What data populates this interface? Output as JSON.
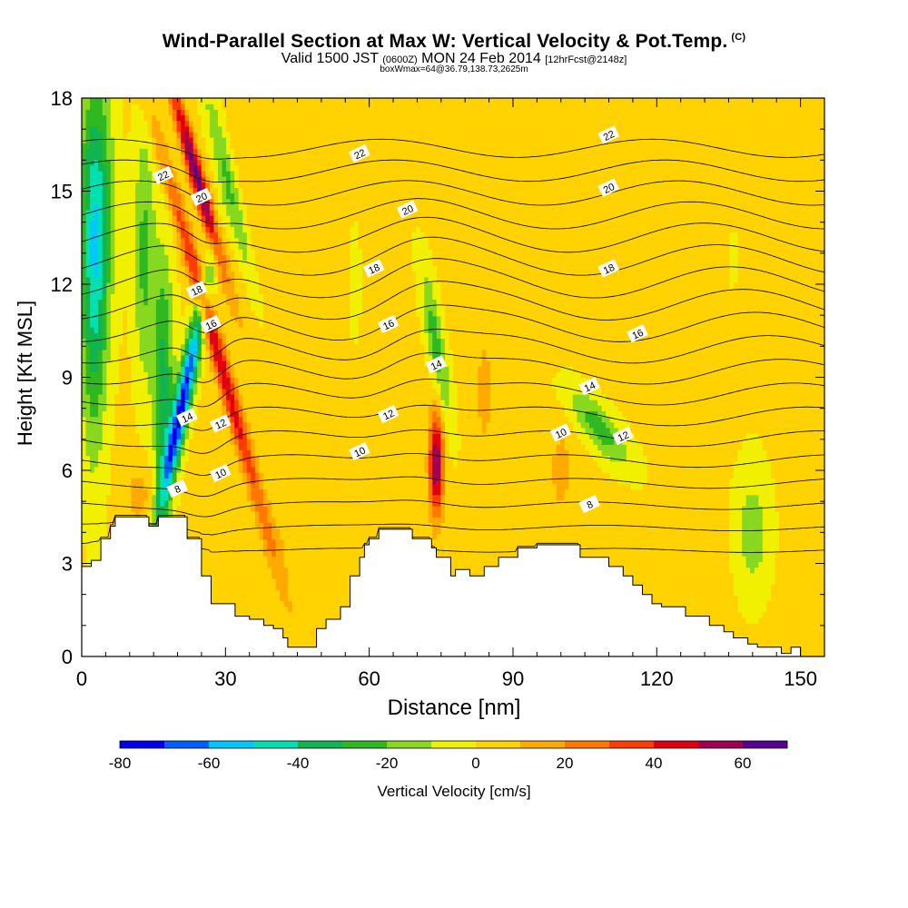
{
  "header": {
    "title": "Wind-Parallel Section at Max W: Vertical Velocity & Pot.Temp.",
    "copyright": "(C)",
    "valid_prefix": "Valid 1500 JST",
    "valid_utc": "(0600Z)",
    "valid_date": "MON 24 Feb 2014",
    "forecast": "[12hrFcst@2148z]",
    "box_info": "boxWmax=64@36.79,138.73,2625m"
  },
  "chart_data": {
    "type": "heatmap",
    "title": "Wind-Parallel Section at Max W: Vertical Velocity & Pot.Temp.",
    "xlabel": "Distance [nm]",
    "ylabel": "Height [Kft MSL]",
    "xlim": [
      0,
      155
    ],
    "ylim": [
      0,
      18
    ],
    "xticks": [
      0,
      30,
      60,
      90,
      120,
      150
    ],
    "yticks": [
      0,
      3,
      6,
      9,
      12,
      15,
      18
    ],
    "colorbar": {
      "label": "Vertical Velocity [cm/s]",
      "min": -80,
      "max": 70,
      "step": 10,
      "tick_values": [
        -80,
        -60,
        -40,
        -20,
        0,
        20,
        40,
        60
      ],
      "colors": [
        "#0000ee",
        "#0060ff",
        "#00c8ff",
        "#00e0b0",
        "#10b450",
        "#30b820",
        "#88d820",
        "#f0f000",
        "#ffd200",
        "#ffaa00",
        "#ff7800",
        "#ff3c00",
        "#e00010",
        "#a00050",
        "#5a0090"
      ]
    },
    "terrain_profile": [
      [
        0,
        2.9
      ],
      [
        2,
        2.9
      ],
      [
        2,
        3.1
      ],
      [
        4,
        3.1
      ],
      [
        4,
        3.8
      ],
      [
        6,
        3.8
      ],
      [
        6,
        4.2
      ],
      [
        7,
        4.2
      ],
      [
        7,
        4.5
      ],
      [
        14,
        4.5
      ],
      [
        14,
        4.2
      ],
      [
        16,
        4.2
      ],
      [
        16,
        4.5
      ],
      [
        22,
        4.5
      ],
      [
        22,
        3.8
      ],
      [
        25,
        3.8
      ],
      [
        25,
        2.6
      ],
      [
        27,
        2.6
      ],
      [
        27,
        1.7
      ],
      [
        32,
        1.7
      ],
      [
        32,
        1.3
      ],
      [
        35,
        1.3
      ],
      [
        35,
        1.2
      ],
      [
        38,
        1.2
      ],
      [
        38,
        1.0
      ],
      [
        40,
        1.0
      ],
      [
        40,
        0.9
      ],
      [
        42,
        0.9
      ],
      [
        42,
        0.6
      ],
      [
        43,
        0.6
      ],
      [
        43,
        0.3
      ],
      [
        49,
        0.3
      ],
      [
        49,
        0.9
      ],
      [
        51,
        0.9
      ],
      [
        51,
        1.2
      ],
      [
        54,
        1.2
      ],
      [
        54,
        1.6
      ],
      [
        56,
        1.6
      ],
      [
        56,
        2.6
      ],
      [
        58,
        2.6
      ],
      [
        58,
        3.2
      ],
      [
        59,
        3.2
      ],
      [
        59,
        3.6
      ],
      [
        60,
        3.6
      ],
      [
        60,
        3.8
      ],
      [
        62,
        3.8
      ],
      [
        62,
        4.1
      ],
      [
        69,
        4.1
      ],
      [
        69,
        3.8
      ],
      [
        73,
        3.8
      ],
      [
        73,
        3.5
      ],
      [
        74,
        3.5
      ],
      [
        74,
        3.2
      ],
      [
        77,
        3.2
      ],
      [
        77,
        2.6
      ],
      [
        78,
        2.6
      ],
      [
        78,
        2.8
      ],
      [
        81,
        2.8
      ],
      [
        81,
        2.6
      ],
      [
        84,
        2.6
      ],
      [
        84,
        2.9
      ],
      [
        87,
        2.9
      ],
      [
        87,
        3.2
      ],
      [
        91,
        3.2
      ],
      [
        91,
        3.5
      ],
      [
        95,
        3.5
      ],
      [
        95,
        3.6
      ],
      [
        104,
        3.6
      ],
      [
        104,
        3.2
      ],
      [
        110,
        3.2
      ],
      [
        110,
        2.9
      ],
      [
        113,
        2.9
      ],
      [
        113,
        2.6
      ],
      [
        115,
        2.6
      ],
      [
        115,
        2.3
      ],
      [
        117,
        2.3
      ],
      [
        117,
        2.0
      ],
      [
        119,
        2.0
      ],
      [
        119,
        1.7
      ],
      [
        121,
        1.7
      ],
      [
        121,
        1.6
      ],
      [
        126,
        1.6
      ],
      [
        126,
        1.3
      ],
      [
        131,
        1.3
      ],
      [
        131,
        1.0
      ],
      [
        134,
        1.0
      ],
      [
        134,
        0.8
      ],
      [
        136,
        0.8
      ],
      [
        136,
        0.6
      ],
      [
        139,
        0.6
      ],
      [
        139,
        0.4
      ],
      [
        141,
        0.4
      ],
      [
        141,
        0.3
      ],
      [
        146,
        0.3
      ],
      [
        146,
        0.1
      ],
      [
        148,
        0.1
      ],
      [
        148,
        0.3
      ],
      [
        150,
        0.3
      ],
      [
        150,
        0
      ]
    ],
    "velocity_features": [
      {
        "x": 3,
        "y": 14.5,
        "sx": 3.5,
        "sy": 4.5,
        "w": -40,
        "tilt": 0
      },
      {
        "x": 2.5,
        "y": 10.5,
        "sx": 2.5,
        "sy": 5,
        "w": -25,
        "tilt": 0
      },
      {
        "x": 13,
        "y": 13,
        "sx": 2.2,
        "sy": 4,
        "w": -25,
        "tilt": 0
      },
      {
        "x": 17,
        "y": 9,
        "sx": 2.2,
        "sy": 4,
        "w": -35,
        "tilt": 0
      },
      {
        "x": 21,
        "y": 8.2,
        "sx": 1.8,
        "sy": 3.6,
        "w": -75,
        "tilt": 1.3
      },
      {
        "x": 28,
        "y": 10,
        "sx": 1.7,
        "sy": 6.5,
        "w": 45,
        "tilt": -1.8
      },
      {
        "x": 24,
        "y": 15.5,
        "sx": 1.6,
        "sy": 3,
        "w": 62,
        "tilt": -1.8
      },
      {
        "x": 31,
        "y": 15,
        "sx": 2,
        "sy": 3.5,
        "w": -25,
        "tilt": -1.5
      },
      {
        "x": 74,
        "y": 6.2,
        "sx": 1.5,
        "sy": 1.7,
        "w": 58,
        "tilt": 0
      },
      {
        "x": 74,
        "y": 10,
        "sx": 1.8,
        "sy": 2.4,
        "w": -28,
        "tilt": -1
      },
      {
        "x": 57,
        "y": 12,
        "sx": 1,
        "sy": 1.5,
        "w": -12,
        "tilt": 0
      },
      {
        "x": 108,
        "y": 7.4,
        "sx": 4,
        "sy": 1.2,
        "w": -28,
        "tilt": -4
      },
      {
        "x": 140,
        "y": 4,
        "sx": 3.5,
        "sy": 2,
        "w": -18,
        "tilt": 0
      },
      {
        "x": 136,
        "y": 12.8,
        "sx": 0.4,
        "sy": 0.6,
        "w": -22,
        "tilt": 0
      },
      {
        "x": 84,
        "y": 8.5,
        "sx": 1.6,
        "sy": 1.8,
        "w": 12,
        "tilt": 0
      },
      {
        "x": 100,
        "y": 6,
        "sx": 2.5,
        "sy": 1.5,
        "w": 12,
        "tilt": 0
      },
      {
        "x": 12,
        "y": 5.2,
        "sx": 3,
        "sy": 1,
        "w": 13,
        "tilt": 0
      },
      {
        "x": 42,
        "y": 4,
        "sx": 4,
        "sy": 1.5,
        "w": 6,
        "tilt": 0
      },
      {
        "x": 60,
        "y": 2.5,
        "sx": 5,
        "sy": 2,
        "w": 6,
        "tilt": 0
      },
      {
        "x": 128,
        "y": 2,
        "sx": 5,
        "sy": 1.5,
        "w": 6,
        "tilt": 0
      },
      {
        "x": 35,
        "y": 13,
        "sx": 5,
        "sy": 6,
        "w": 5,
        "tilt": 0
      },
      {
        "x": 90,
        "y": 13,
        "sx": 6,
        "sy": 6,
        "w": 5,
        "tilt": 0
      },
      {
        "x": 140,
        "y": 14,
        "sx": 5,
        "sy": 6,
        "w": -2,
        "tilt": 0
      }
    ],
    "theta_contours": {
      "levels": [
        6,
        7,
        8,
        9,
        10,
        11,
        12,
        13,
        14,
        15,
        16,
        17,
        18,
        19,
        20,
        21,
        22,
        23,
        24
      ],
      "labels": [
        {
          "text": "22",
          "x": 17,
          "y": 15.5
        },
        {
          "text": "20",
          "x": 25,
          "y": 14.8
        },
        {
          "text": "18",
          "x": 24,
          "y": 11.8
        },
        {
          "text": "16",
          "x": 27,
          "y": 10.7
        },
        {
          "text": "14",
          "x": 22,
          "y": 7.7
        },
        {
          "text": "12",
          "x": 29,
          "y": 7.5
        },
        {
          "text": "10",
          "x": 29,
          "y": 5.9
        },
        {
          "text": "8",
          "x": 20,
          "y": 5.4
        },
        {
          "text": "22",
          "x": 58,
          "y": 16.2
        },
        {
          "text": "20",
          "x": 68,
          "y": 14.4
        },
        {
          "text": "18",
          "x": 61,
          "y": 12.5
        },
        {
          "text": "16",
          "x": 64,
          "y": 10.7
        },
        {
          "text": "14",
          "x": 74,
          "y": 9.4
        },
        {
          "text": "12",
          "x": 64,
          "y": 7.8
        },
        {
          "text": "10",
          "x": 58,
          "y": 6.6
        },
        {
          "text": "22",
          "x": 110,
          "y": 16.8
        },
        {
          "text": "20",
          "x": 110,
          "y": 15.1
        },
        {
          "text": "18",
          "x": 110,
          "y": 12.5
        },
        {
          "text": "16",
          "x": 116,
          "y": 10.4
        },
        {
          "text": "14",
          "x": 106,
          "y": 8.7
        },
        {
          "text": "12",
          "x": 113,
          "y": 7.1
        },
        {
          "text": "10",
          "x": 100,
          "y": 7.2
        },
        {
          "text": "8",
          "x": 106,
          "y": 4.9
        }
      ]
    }
  }
}
